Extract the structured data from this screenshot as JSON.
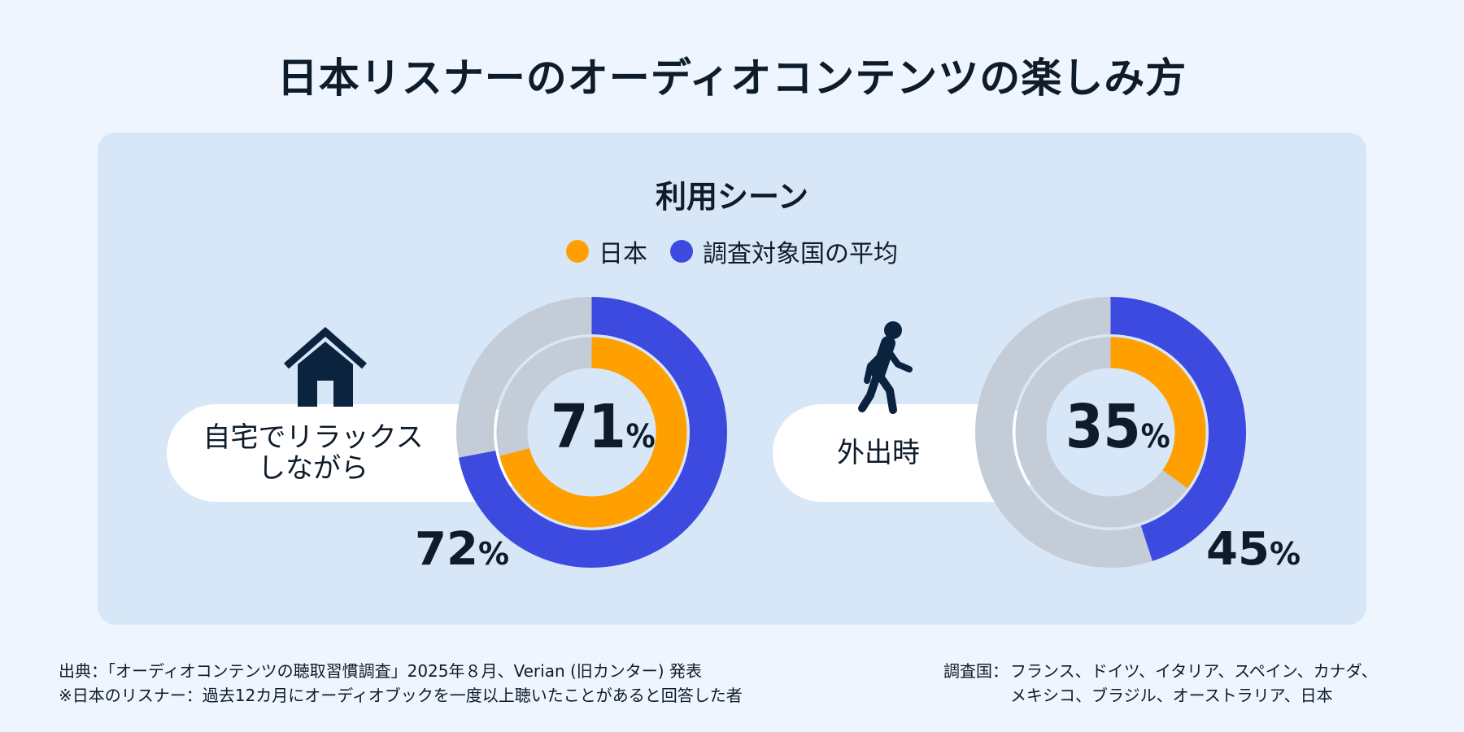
{
  "title": "日本リスナーのオーディオコンテンツの楽しみ方",
  "subtitle": "利用シーン",
  "legend": {
    "japan": "日本",
    "average": "調査対象国の平均"
  },
  "colors": {
    "japan": "#ffa000",
    "average": "#3c4ae0",
    "track": "#c4ccd8",
    "icon": "#0c2340"
  },
  "chart_data": [
    {
      "type": "pie",
      "title": "自宅でリラックスしながら",
      "label_lines": [
        "自宅でリラックス",
        "しながら"
      ],
      "icon": "house-icon",
      "series": [
        {
          "name": "日本",
          "value": 71
        },
        {
          "name": "調査対象国の平均",
          "value": 72
        }
      ],
      "unit": "%"
    },
    {
      "type": "pie",
      "title": "外出時",
      "label_lines": [
        "外出時"
      ],
      "icon": "walking-person-icon",
      "series": [
        {
          "name": "日本",
          "value": 35
        },
        {
          "name": "調査対象国の平均",
          "value": 45
        }
      ],
      "unit": "%"
    }
  ],
  "footer": {
    "source": "出典：「オーディオコンテンツの聴取習慣調査」2025年８月、Verian (旧カンター) 発表",
    "note": "※日本のリスナー：過去12カ月にオーディオブックを一度以上聴いたことがあると回答した者",
    "countries_label": "調査国：",
    "countries_line1": "フランス、ドイツ、イタリア、スペイン、カナダ、",
    "countries_line2": "メキシコ、ブラジル、オーストラリア、日本"
  }
}
